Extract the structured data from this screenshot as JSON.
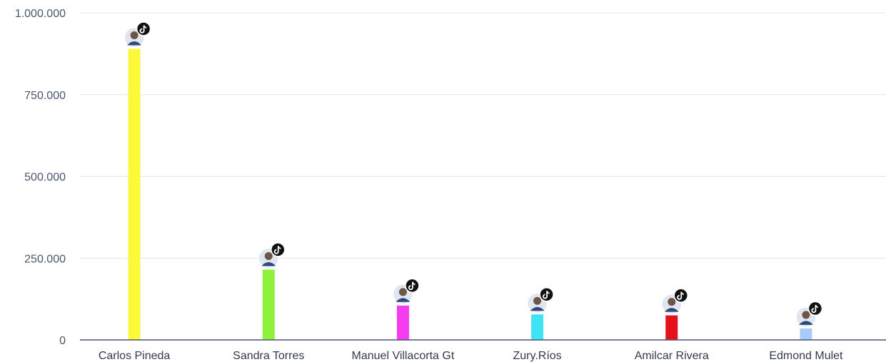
{
  "chart_data": {
    "type": "bar",
    "categories": [
      "Carlos Pineda",
      "Sandra Torres",
      "Manuel Villacorta Gt",
      "Zury.Ríos",
      "Amilcar Rivera",
      "Edmond Mulet"
    ],
    "values": [
      890000,
      215000,
      105000,
      78000,
      75000,
      35000
    ],
    "colors": [
      "#fbf93a",
      "#8df23b",
      "#f53cf0",
      "#40e3f3",
      "#e4111b",
      "#a9cbfb"
    ],
    "avatar_icons": [
      "avatar-icon",
      "avatar-icon",
      "avatar-icon",
      "avatar-icon",
      "avatar-icon",
      "avatar-icon"
    ],
    "badge_icon": "tiktok-icon",
    "yticks": [
      "0",
      "250.000",
      "500.000",
      "750.000",
      "1.000.000"
    ],
    "ytick_values": [
      0,
      250000,
      500000,
      750000,
      1000000
    ],
    "ylim": [
      0,
      1000000
    ],
    "grid": true,
    "gridColor": "#e3e3e3",
    "axisColor": "#4a5570"
  }
}
